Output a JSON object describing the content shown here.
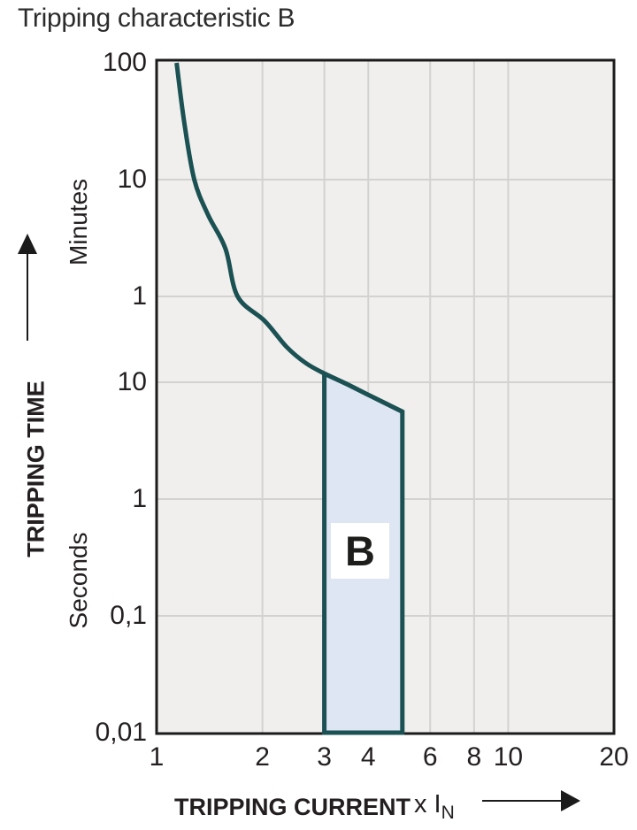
{
  "chart_data": {
    "type": "line",
    "title": "Tripping characteristic B",
    "x_axis": {
      "label": "TRIPPING CURRENT",
      "unit_prefix": "x I",
      "unit_sub": "N",
      "scale": "log",
      "range": [
        1,
        20
      ],
      "tick_labels": [
        "1",
        "2",
        "3",
        "4",
        "6",
        "8",
        "10",
        "20"
      ],
      "tick_values": [
        1,
        2,
        3,
        4,
        6,
        8,
        10,
        20
      ],
      "gridline_values": [
        2,
        3,
        4,
        6,
        8,
        10
      ]
    },
    "y_axis": {
      "label": "TRIPPING TIME",
      "scale": "log",
      "unit_sections": [
        {
          "name": "Minutes",
          "range": [
            1,
            100
          ]
        },
        {
          "name": "Seconds",
          "range": [
            0.01,
            10
          ]
        }
      ],
      "ticks": [
        {
          "label": "100",
          "seconds": 6000
        },
        {
          "label": "10",
          "seconds": 600
        },
        {
          "label": "1",
          "seconds": 60
        },
        {
          "label": "10",
          "seconds": 10
        },
        {
          "label": "1",
          "seconds": 1
        },
        {
          "label": "0,1",
          "seconds": 0.1
        },
        {
          "label": "0,01",
          "seconds": 0.01
        }
      ]
    },
    "series": [
      {
        "name": "tripping-time-limit-curve",
        "points_x_multiple_vs_seconds": [
          [
            1.14,
            6000
          ],
          [
            1.2,
            1800
          ],
          [
            1.28,
            600
          ],
          [
            1.4,
            300
          ],
          [
            1.57,
            154
          ],
          [
            1.7,
            60
          ],
          [
            2.03,
            36
          ],
          [
            2.34,
            21
          ],
          [
            2.65,
            15
          ],
          [
            3.0,
            12
          ],
          [
            3.5,
            9.55
          ],
          [
            4.0,
            7.8
          ],
          [
            4.5,
            6.55
          ],
          [
            5.0,
            5.6
          ]
        ]
      }
    ],
    "region": {
      "label": "B",
      "x_from": 3,
      "x_to": 5,
      "t_top_from_seconds": 12,
      "t_top_to_seconds": 5.6,
      "t_bottom_seconds": 0.01
    },
    "colors": {
      "curve": "#1b5153",
      "region_fill": "#dee5f3",
      "plot_background": "#f0efee",
      "gridline": "#d3d2d0",
      "border": "#1b1b1b",
      "text": "#231f20"
    },
    "legend": "none",
    "grid": "on"
  }
}
